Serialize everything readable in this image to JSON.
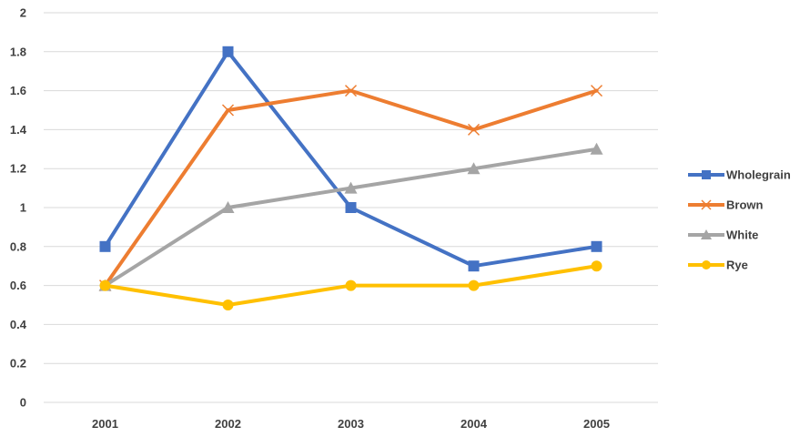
{
  "chart_data": {
    "type": "line",
    "categories": [
      "2001",
      "2002",
      "2003",
      "2004",
      "2005"
    ],
    "series": [
      {
        "name": "Wholegrain",
        "values": [
          0.8,
          1.8,
          1.0,
          0.7,
          0.8
        ],
        "color": "#4472C4",
        "marker": "square"
      },
      {
        "name": "Brown",
        "values": [
          0.6,
          1.5,
          1.6,
          1.4,
          1.6
        ],
        "color": "#ED7D31",
        "marker": "x"
      },
      {
        "name": "White",
        "values": [
          0.6,
          1.0,
          1.1,
          1.2,
          1.3
        ],
        "color": "#A5A5A5",
        "marker": "triangle"
      },
      {
        "name": "Rye",
        "values": [
          0.6,
          0.5,
          0.6,
          0.6,
          0.7
        ],
        "color": "#FFC000",
        "marker": "circle"
      }
    ],
    "ylim": [
      0,
      2
    ],
    "yticks": [
      "0",
      "0.2",
      "0.4",
      "0.6",
      "0.8",
      "1",
      "1.2",
      "1.4",
      "1.6",
      "1.8",
      "2"
    ],
    "grid": true,
    "legend": "right"
  }
}
